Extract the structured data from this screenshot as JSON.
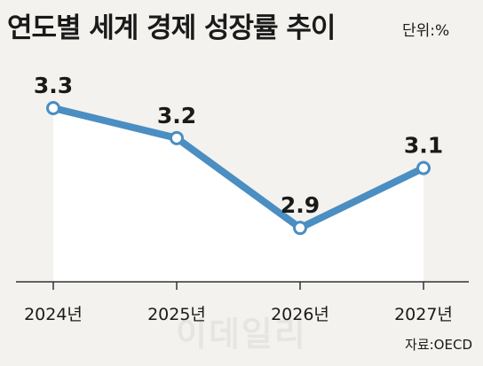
{
  "header": {
    "title": "연도별 세계 경제 성장률 추이",
    "unit_label": "단위:%"
  },
  "footer": {
    "source": "자료:OECD",
    "watermark": "이데일리"
  },
  "colors": {
    "line": "#4a8ec2",
    "marker_fill": "#ffffff",
    "area": "#ffffff",
    "background": "#f3f2ee",
    "axis": "#333333"
  },
  "chart_data": {
    "type": "line",
    "title": "연도별 세계 경제 성장률 추이",
    "unit": "단위:%",
    "categories": [
      "2024년",
      "2025년",
      "2026년",
      "2027년"
    ],
    "series": [
      {
        "values": [
          3.3,
          3.2,
          2.9,
          3.1
        ],
        "labels": [
          "3.3",
          "3.2",
          "2.9",
          "3.1"
        ]
      }
    ],
    "ylim": [
      2.72,
      3.38
    ],
    "grid": false,
    "legend": "none"
  }
}
